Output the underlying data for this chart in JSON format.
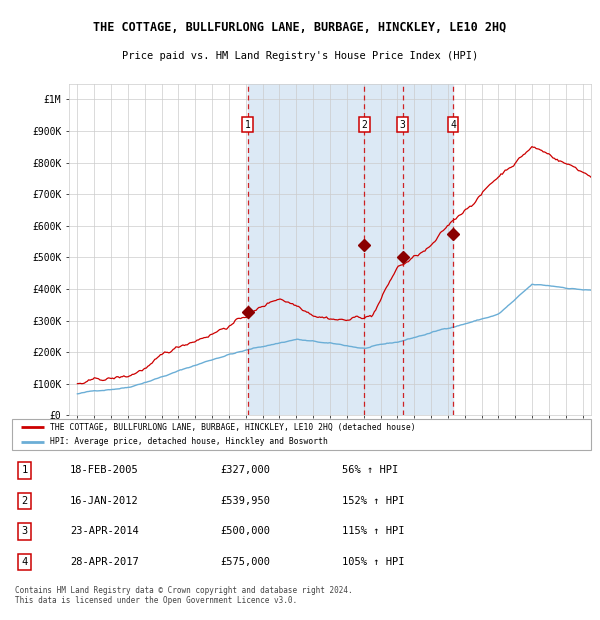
{
  "title": "THE COTTAGE, BULLFURLONG LANE, BURBAGE, HINCKLEY, LE10 2HQ",
  "subtitle": "Price paid vs. HM Land Registry's House Price Index (HPI)",
  "legend_line1": "THE COTTAGE, BULLFURLONG LANE, BURBAGE, HINCKLEY, LE10 2HQ (detached house)",
  "legend_line2": "HPI: Average price, detached house, Hinckley and Bosworth",
  "footnote": "Contains HM Land Registry data © Crown copyright and database right 2024.\nThis data is licensed under the Open Government Licence v3.0.",
  "transactions": [
    {
      "num": 1,
      "date": "18-FEB-2005",
      "price": 327000,
      "pct": "56%",
      "year_x": 2005.12
    },
    {
      "num": 2,
      "date": "16-JAN-2012",
      "price": 539950,
      "pct": "152%",
      "year_x": 2012.04
    },
    {
      "num": 3,
      "date": "23-APR-2014",
      "price": 500000,
      "pct": "115%",
      "year_x": 2014.31
    },
    {
      "num": 4,
      "date": "28-APR-2017",
      "price": 575000,
      "pct": "105%",
      "year_x": 2017.31
    }
  ],
  "shade_x_start": 2005.12,
  "shade_x_end": 2017.31,
  "hpi_color": "#6baed6",
  "price_color": "#cc0000",
  "transaction_marker_color": "#8b0000",
  "dashed_line_color": "#cc0000",
  "shade_color": "#dce9f5",
  "plot_bg": "#ffffff",
  "grid_color": "#cccccc",
  "ylim": [
    0,
    1050000
  ],
  "xlim_start": 1994.5,
  "xlim_end": 2025.5,
  "ytick_labels": [
    "£0",
    "£100K",
    "£200K",
    "£300K",
    "£400K",
    "£500K",
    "£600K",
    "£700K",
    "£800K",
    "£900K",
    "£1M"
  ],
  "ytick_values": [
    0,
    100000,
    200000,
    300000,
    400000,
    500000,
    600000,
    700000,
    800000,
    900000,
    1000000
  ],
  "xtick_years": [
    1995,
    1996,
    1997,
    1998,
    1999,
    2000,
    2001,
    2002,
    2003,
    2004,
    2005,
    2006,
    2007,
    2008,
    2009,
    2010,
    2011,
    2012,
    2013,
    2014,
    2015,
    2016,
    2017,
    2018,
    2019,
    2020,
    2021,
    2022,
    2023,
    2024,
    2025
  ]
}
